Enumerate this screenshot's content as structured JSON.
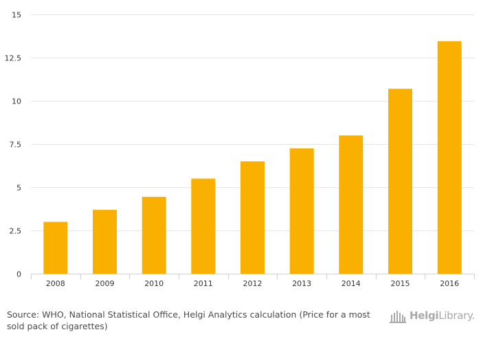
{
  "chart_data": {
    "type": "bar",
    "categories": [
      "2008",
      "2009",
      "2010",
      "2011",
      "2012",
      "2013",
      "2014",
      "2015",
      "2016"
    ],
    "values": [
      3.0,
      3.7,
      4.45,
      5.5,
      6.5,
      7.25,
      8.0,
      10.7,
      13.45
    ],
    "ylim": [
      0,
      15
    ],
    "yticks": [
      0,
      2.5,
      5,
      7.5,
      10,
      12.5,
      15
    ],
    "ytick_labels": [
      "0",
      "2.5",
      "5",
      "7.5",
      "10",
      "12.5",
      "15"
    ],
    "grid": true,
    "bar_color": "#f9b000",
    "title": "",
    "xlabel": "",
    "ylabel": ""
  },
  "footer": {
    "source_prefix": "Source:",
    "source_text": "WHO, National Statistical Office, Helgi Analytics calculation (Price for a most sold pack of cigarettes)",
    "logo_bold": "Helgi",
    "logo_rest": "Library."
  },
  "colors": {
    "grid": "#e6e6e6",
    "axis": "#cfcfcf",
    "logo": "#a8a8a8"
  }
}
